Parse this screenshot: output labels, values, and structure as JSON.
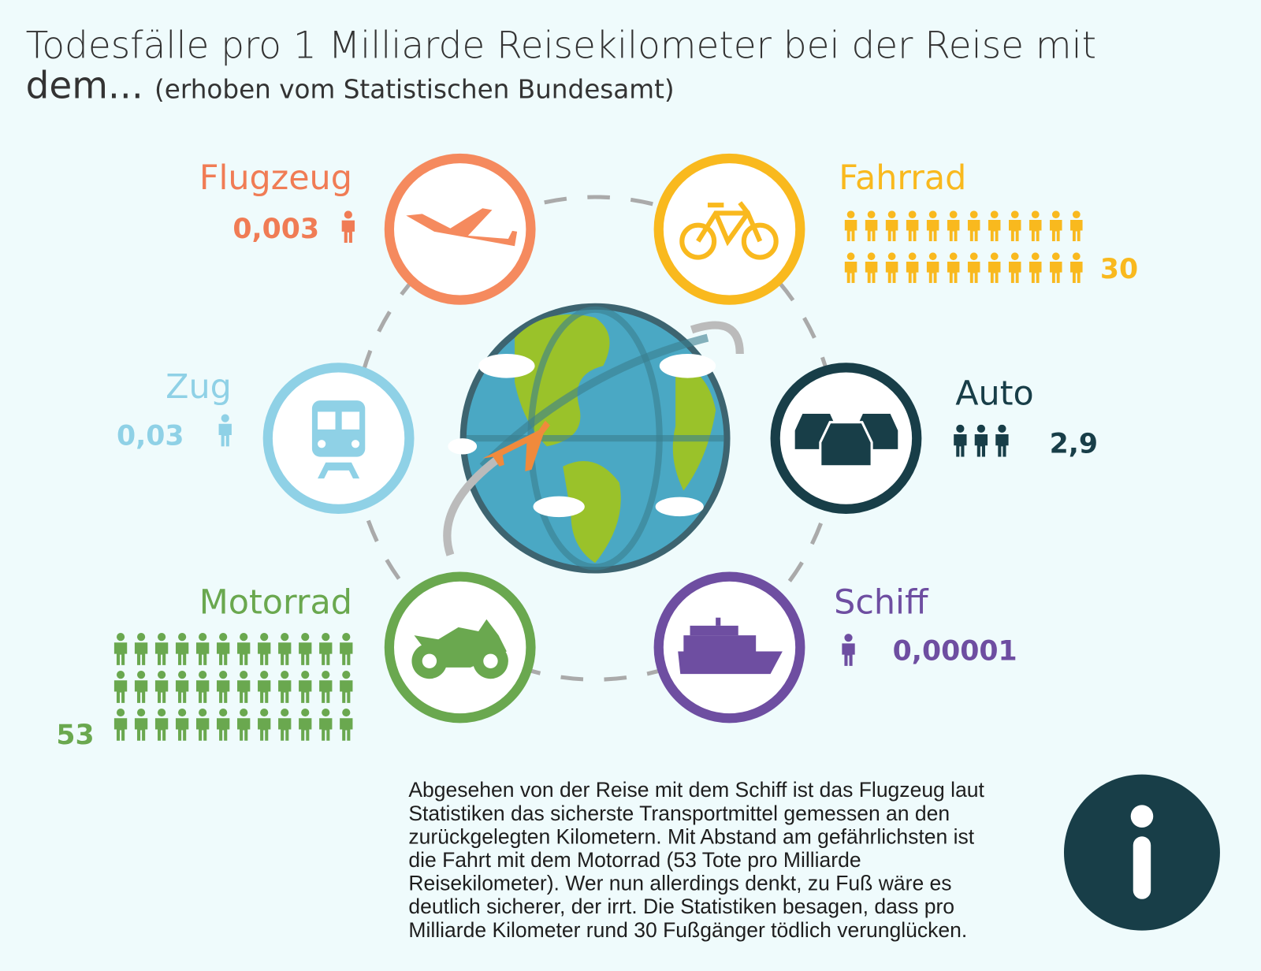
{
  "title": {
    "line1": "Todesfälle pro 1 Milliarde Reisekilometer bei der Reise mit",
    "line2": "dem...",
    "note": "(erhoben vom Statistischen Bundesamt)"
  },
  "modes": [
    {
      "name": "Flugzeug",
      "value": "0,003"
    },
    {
      "name": "Fahrrad",
      "value": "30"
    },
    {
      "name": "Zug",
      "value": "0,03"
    },
    {
      "name": "Auto",
      "value": "2,9"
    },
    {
      "name": "Motorrad",
      "value": "53"
    },
    {
      "name": "Schiff",
      "value": "0,00001"
    }
  ],
  "info": {
    "lines": [
      "Abgesehen von der Reise mit dem Schiff ist das Flugzeug laut",
      "Statistiken das sicherste Transportmittel gemessen an den",
      "zurückgelegten Kilometern. Mit Abstand am gefährlichsten ist",
      "die Fahrt mit dem Motorrad (53 Tote pro Milliarde",
      "Reisekilometer). Wer nun allerdings denkt, zu Fuß wäre es",
      "deutlich sicherer, der irrt.  Die Statistiken besagen, dass pro",
      "Milliarde Kilometer rund 30 Fußgänger tödlich verunglücken."
    ]
  }
}
